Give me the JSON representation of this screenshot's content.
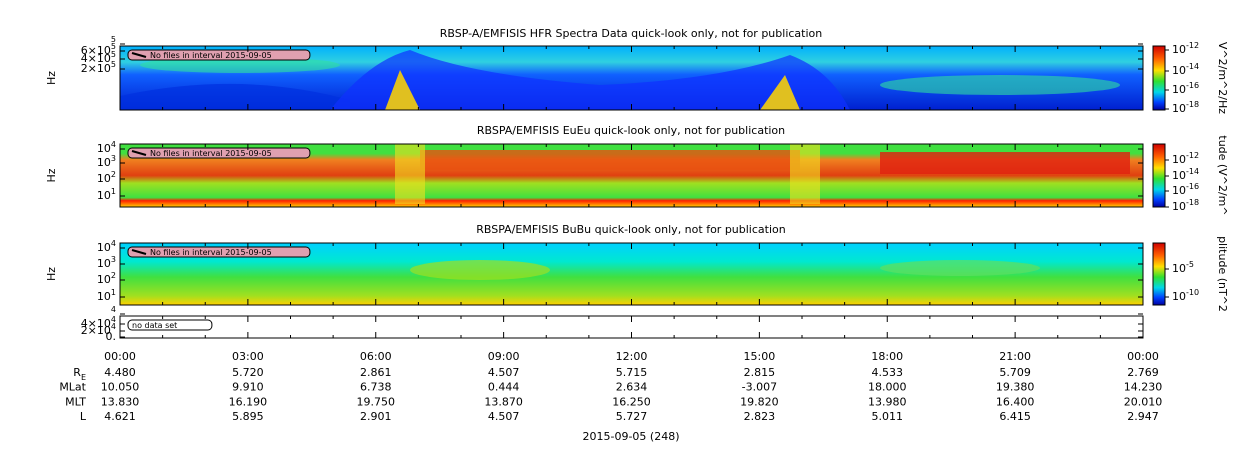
{
  "panels": [
    {
      "title": "RBSP-A/EMFISIS  HFR Spectra Data quick-look only, not for publication",
      "ylabel": "Hz",
      "yticks": [
        {
          "exp": "5"
        },
        {
          "base": "6×10",
          "exp": "5"
        },
        {
          "base": "4×10",
          "exp": "5"
        },
        {
          "base": "2×10",
          "exp": "5"
        }
      ],
      "note": "No files in interval 2015-09-05",
      "colorbar": {
        "label": "V^2/m^2/Hz",
        "ticks": [
          {
            "base": "10",
            "exp": "-12"
          },
          {
            "base": "10",
            "exp": "-14"
          },
          {
            "base": "10",
            "exp": "-16"
          },
          {
            "base": "10",
            "exp": "-18"
          }
        ]
      }
    },
    {
      "title": "RBSPA/EMFISIS  EuEu quick-look only, not for publication",
      "ylabel": "Hz",
      "yticks": [
        {
          "base": "10",
          "exp": "4"
        },
        {
          "base": "10",
          "exp": "3"
        },
        {
          "base": "10",
          "exp": "2"
        },
        {
          "base": "10",
          "exp": "1"
        }
      ],
      "note": "No files in interval 2015-09-05",
      "colorbar": {
        "label": "tude (V^2/m^",
        "ticks": [
          {
            "base": "10",
            "exp": "-12"
          },
          {
            "base": "10",
            "exp": "-14"
          },
          {
            "base": "10",
            "exp": "-16"
          },
          {
            "base": "10",
            "exp": "-18"
          }
        ]
      }
    },
    {
      "title": "RBSPA/EMFISIS  BuBu quick-look only, not for publication",
      "ylabel": "Hz",
      "yticks": [
        {
          "base": "10",
          "exp": "4"
        },
        {
          "base": "10",
          "exp": "3"
        },
        {
          "base": "10",
          "exp": "2"
        },
        {
          "base": "10",
          "exp": "1"
        }
      ],
      "note": "No files in interval 2015-09-05",
      "colorbar": {
        "label": "plitude (nT^2",
        "ticks": [
          {
            "base": "10",
            "exp": "-5"
          },
          {
            "base": "10",
            "exp": "-10"
          }
        ]
      }
    },
    {
      "yticks": [
        {
          "exp": "4"
        },
        {
          "base": "4×10",
          "exp": "4"
        },
        {
          "base": "2×10",
          "exp": "4"
        },
        {
          "base": "0."
        }
      ],
      "note": "no data set"
    }
  ],
  "times": [
    "00:00",
    "03:00",
    "06:00",
    "09:00",
    "12:00",
    "15:00",
    "18:00",
    "21:00",
    "00:00"
  ],
  "ephemeris": [
    {
      "label": {
        "base": "R",
        "sub": "E"
      },
      "values": [
        "4.480",
        "5.720",
        "2.861",
        "4.507",
        "5.715",
        "2.815",
        "4.533",
        "5.709",
        "2.769"
      ]
    },
    {
      "label": {
        "base": "MLat"
      },
      "values": [
        "10.050",
        "9.910",
        "6.738",
        "0.444",
        "2.634",
        "-3.007",
        "18.000",
        "19.380",
        "14.230"
      ]
    },
    {
      "label": {
        "base": "MLT"
      },
      "values": [
        "13.830",
        "16.190",
        "19.750",
        "13.870",
        "16.250",
        "19.820",
        "13.980",
        "16.400",
        "20.010"
      ]
    },
    {
      "label": {
        "base": "L"
      },
      "values": [
        "4.621",
        "5.895",
        "2.901",
        "4.507",
        "5.727",
        "2.823",
        "5.011",
        "6.415",
        "2.947"
      ]
    }
  ],
  "date_label": "2015-09-05 (248)"
}
